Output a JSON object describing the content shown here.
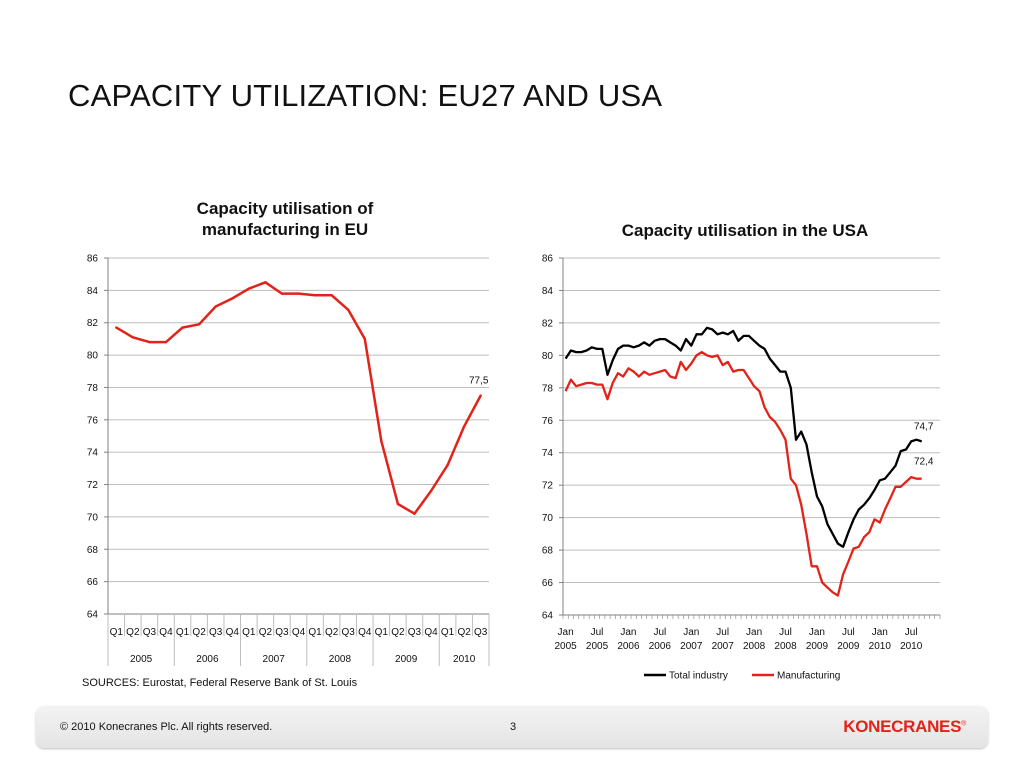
{
  "slide": {
    "title": "CAPACITY UTILIZATION: EU27 AND USA",
    "source": "SOURCES: Eurostat, Federal Reserve Bank of St. Louis"
  },
  "footer": {
    "copyright": "© 2010 Konecranes Plc. All rights reserved.",
    "page_number": "3",
    "logo_text": "KONECRANES",
    "logo_mark": "®"
  },
  "colors": {
    "red": "#e2231a",
    "black": "#000000",
    "grid": "#bdbdbd",
    "axis": "#808080"
  },
  "chart_data": [
    {
      "type": "line",
      "title": "Capacity utilisation of manufacturing in EU",
      "title_lines": [
        "Capacity utilisation of",
        "manufacturing in EU"
      ],
      "ylim": [
        64,
        86
      ],
      "yticks": [
        "64",
        "66",
        "68",
        "70",
        "72",
        "74",
        "76",
        "78",
        "80",
        "82",
        "84",
        "86"
      ],
      "grid": true,
      "categories": [
        "Q1",
        "Q2",
        "Q3",
        "Q4",
        "Q1",
        "Q2",
        "Q3",
        "Q4",
        "Q1",
        "Q2",
        "Q3",
        "Q4",
        "Q1",
        "Q2",
        "Q3",
        "Q4",
        "Q1",
        "Q2",
        "Q3",
        "Q4",
        "Q1",
        "Q2",
        "Q3"
      ],
      "year_groups": [
        {
          "label": "2005",
          "count": 4
        },
        {
          "label": "2006",
          "count": 4
        },
        {
          "label": "2007",
          "count": 4
        },
        {
          "label": "2008",
          "count": 4
        },
        {
          "label": "2009",
          "count": 4
        },
        {
          "label": "2010",
          "count": 3
        }
      ],
      "series": [
        {
          "values": [
            81.7,
            81.1,
            80.8,
            80.8,
            81.7,
            81.9,
            83.0,
            83.5,
            84.1,
            84.5,
            83.8,
            83.8,
            83.7,
            83.7,
            82.8,
            81.0,
            74.7,
            70.8,
            70.2,
            71.6,
            73.2,
            75.6,
            77.5
          ],
          "color": "#e2231a"
        }
      ],
      "annotations": [
        {
          "text": "77,5",
          "series": 0
        }
      ]
    },
    {
      "type": "line",
      "title": "Capacity utilisation in the USA",
      "ylim": [
        64,
        86
      ],
      "yticks": [
        "64",
        "66",
        "68",
        "70",
        "72",
        "74",
        "76",
        "78",
        "80",
        "82",
        "84",
        "86"
      ],
      "grid": true,
      "x_labels": [
        {
          "month": "Jan",
          "year": "2005"
        },
        {
          "month": "Jul",
          "year": "2005"
        },
        {
          "month": "Jan",
          "year": "2006"
        },
        {
          "month": "Jul",
          "year": "2006"
        },
        {
          "month": "Jan",
          "year": "2007"
        },
        {
          "month": "Jul",
          "year": "2007"
        },
        {
          "month": "Jan",
          "year": "2008"
        },
        {
          "month": "Jul",
          "year": "2008"
        },
        {
          "month": "Jan",
          "year": "2009"
        },
        {
          "month": "Jul",
          "year": "2009"
        },
        {
          "month": "Jan",
          "year": "2010"
        },
        {
          "month": "Jul",
          "year": "2010"
        }
      ],
      "x_months_per_label": 6,
      "legend_position": "bottom",
      "series": [
        {
          "name": "Total industry",
          "color": "#000000",
          "values": [
            79.8,
            80.3,
            80.2,
            80.2,
            80.3,
            80.5,
            80.4,
            80.4,
            78.8,
            79.7,
            80.4,
            80.6,
            80.6,
            80.5,
            80.6,
            80.8,
            80.6,
            80.9,
            81.0,
            81.0,
            80.8,
            80.6,
            80.3,
            81.0,
            80.6,
            81.3,
            81.3,
            81.7,
            81.6,
            81.3,
            81.4,
            81.3,
            81.5,
            80.9,
            81.2,
            81.2,
            80.9,
            80.6,
            80.4,
            79.8,
            79.4,
            79.0,
            79.0,
            78.0,
            74.8,
            75.3,
            74.5,
            72.8,
            71.3,
            70.7,
            69.6,
            69.0,
            68.4,
            68.2,
            69.1,
            69.9,
            70.5,
            70.8,
            71.2,
            71.7,
            72.3,
            72.4,
            72.8,
            73.2,
            74.1,
            74.2,
            74.7,
            74.8,
            74.7
          ],
          "end_label": "74,7"
        },
        {
          "name": "Manufacturing",
          "color": "#e2231a",
          "values": [
            77.8,
            78.5,
            78.1,
            78.2,
            78.3,
            78.3,
            78.2,
            78.2,
            77.3,
            78.3,
            78.9,
            78.7,
            79.2,
            79.0,
            78.7,
            79.0,
            78.8,
            78.9,
            79.0,
            79.1,
            78.7,
            78.6,
            79.6,
            79.1,
            79.5,
            80.0,
            80.2,
            80.0,
            79.9,
            80.0,
            79.4,
            79.6,
            79.0,
            79.1,
            79.1,
            78.6,
            78.1,
            77.8,
            76.8,
            76.2,
            75.9,
            75.4,
            74.8,
            72.4,
            72.0,
            70.8,
            69.0,
            67.0,
            67.0,
            66.0,
            65.7,
            65.4,
            65.2,
            66.5,
            67.3,
            68.1,
            68.2,
            68.8,
            69.1,
            69.9,
            69.7,
            70.5,
            71.2,
            71.9,
            71.9,
            72.2,
            72.5,
            72.4,
            72.4
          ],
          "end_label": "72,4"
        }
      ]
    }
  ]
}
